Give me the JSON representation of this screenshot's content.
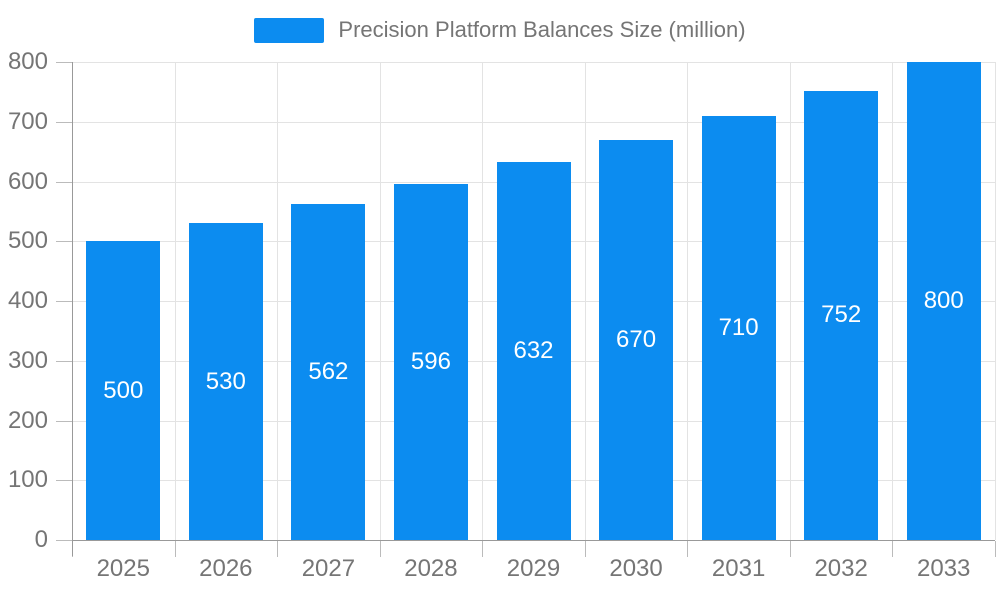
{
  "legend": {
    "position": "top",
    "swatch_color": "#0c8cf0"
  },
  "chart_data": {
    "type": "bar",
    "title": "Precision Platform Balances Size (million)",
    "categories": [
      "2025",
      "2026",
      "2027",
      "2028",
      "2029",
      "2030",
      "2031",
      "2032",
      "2033"
    ],
    "series": [
      {
        "name": "Precision Platform Balances Size (million)",
        "values": [
          500,
          530,
          562,
          596,
          632,
          670,
          710,
          752,
          800
        ]
      }
    ],
    "xlabel": "",
    "ylabel": "",
    "ylim": [
      0,
      800
    ],
    "ytick_step": 100,
    "yticks": [
      0,
      100,
      200,
      300,
      400,
      500,
      600,
      700,
      800
    ],
    "grid": true,
    "legend_position": "top",
    "bar_color": "#0c8cf0",
    "value_labels": {
      "show": true,
      "position": "inside-center",
      "color": "#ffffff"
    },
    "axis_text_color": "#757575",
    "gridline_color": "#e3e3e3",
    "axis_line_color": "#999999"
  }
}
